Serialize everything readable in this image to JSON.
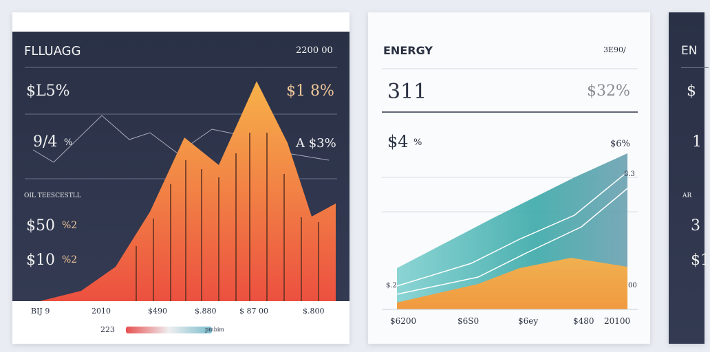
{
  "panels": [
    {
      "title": "FLLUAGG",
      "corner": "2200 00",
      "labels": [
        "$L5%",
        "$1 8%",
        "9/4",
        "%",
        "A $3%",
        "OIL TEESCESTLL",
        "$50",
        "%2",
        "$10",
        "%2"
      ],
      "footer": [
        "BIJ 9",
        "2010",
        "$490",
        "$.880",
        "$ 87 00",
        "$.800"
      ],
      "legend": [
        "223",
        "pmbim"
      ]
    },
    {
      "title": "ENERGY",
      "corner": "3E90/",
      "labels": [
        "311",
        "$32%",
        "$4",
        "%",
        "$6%",
        "8.3",
        "$.2",
        "00"
      ],
      "footer": [
        "$6200",
        "$6S0",
        "$6ey",
        "$480",
        "20100"
      ]
    },
    {
      "title": "EN",
      "labels": [
        "$",
        "1",
        "AR",
        "3",
        "$1"
      ]
    }
  ]
}
